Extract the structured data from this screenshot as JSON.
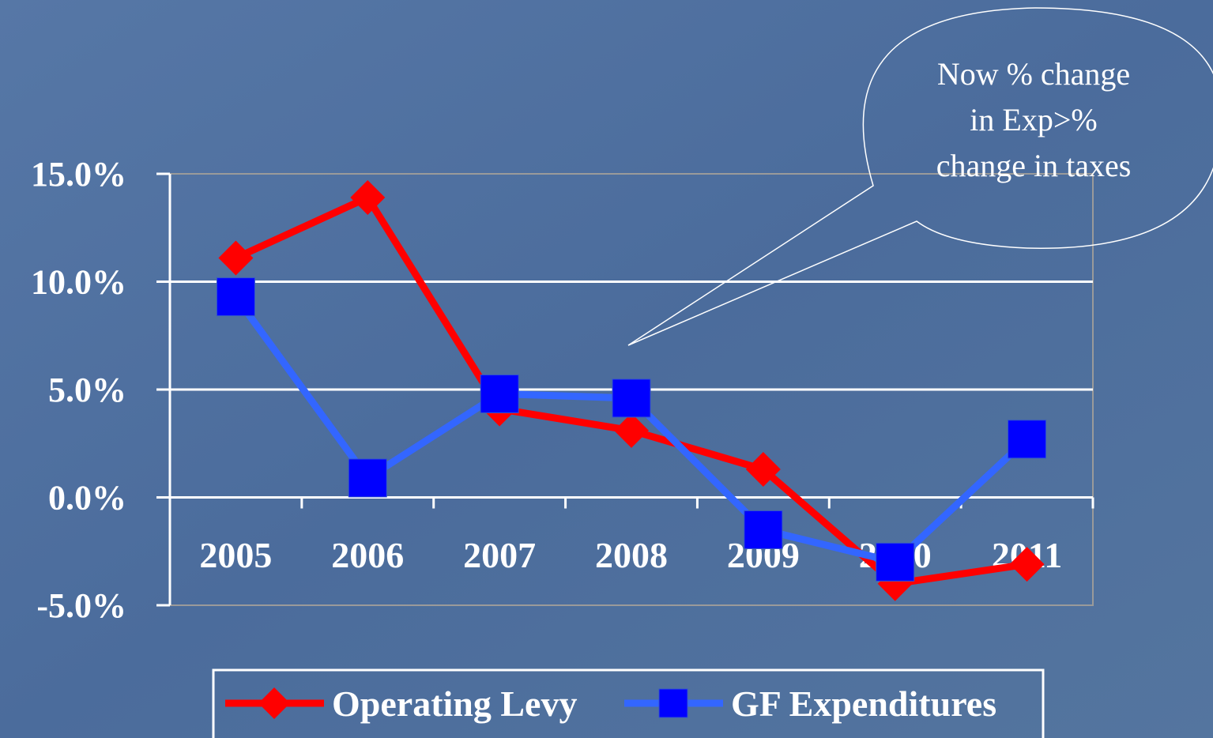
{
  "chart_data": {
    "type": "line",
    "categories": [
      "2005",
      "2006",
      "2007",
      "2008",
      "2009",
      "2010",
      "2011"
    ],
    "series": [
      {
        "name": "Operating Levy",
        "color": "#ff0000",
        "marker": "diamond",
        "values": [
          11.1,
          13.9,
          4.1,
          3.1,
          1.3,
          -4.0,
          -3.1
        ]
      },
      {
        "name": "GF Expenditures",
        "color": "#3366ff",
        "marker_color": "#0000ff",
        "marker": "square",
        "values": [
          9.3,
          0.9,
          4.8,
          4.6,
          -1.5,
          -3.0,
          2.7
        ]
      }
    ],
    "ylim": [
      -5,
      15
    ],
    "yticks": [
      {
        "value": -5,
        "label": "-5.0%"
      },
      {
        "value": 0,
        "label": "0.0%"
      },
      {
        "value": 5,
        "label": "5.0%"
      },
      {
        "value": 10,
        "label": "10.0%"
      },
      {
        "value": 15,
        "label": "15.0%"
      }
    ],
    "grid": true,
    "legend": "bottom",
    "annotation": [
      "Now % change",
      "in Exp>%",
      "change in taxes"
    ]
  }
}
